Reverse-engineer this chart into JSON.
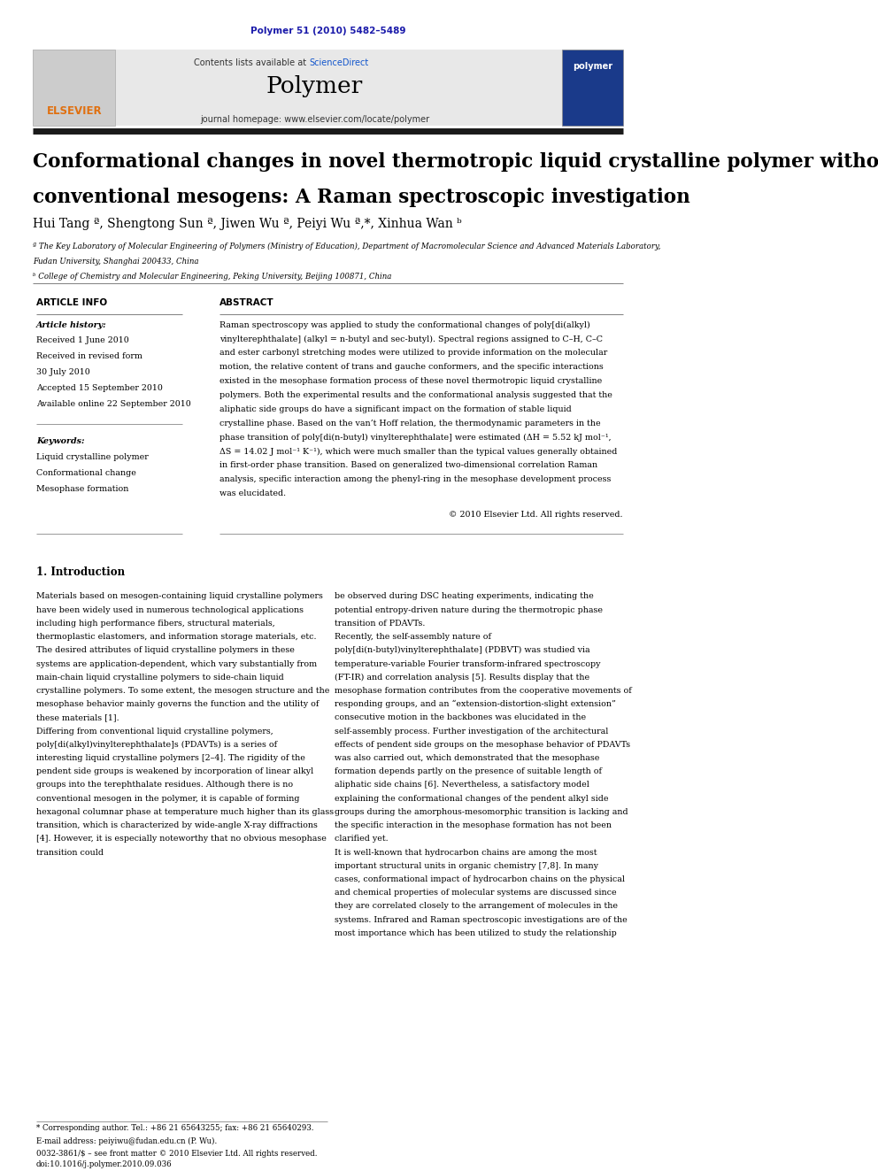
{
  "page_width": 9.92,
  "page_height": 13.23,
  "background_color": "#ffffff",
  "top_doi": "Polymer 51 (2010) 5482–5489",
  "top_doi_color": "#1a1aaa",
  "header_bg": "#e8e8e8",
  "header_text_contents": "Contents lists available at",
  "header_sciencedirect": "ScienceDirect",
  "header_journal": "Polymer",
  "header_homepage": "journal homepage: www.elsevier.com/locate/polymer",
  "thick_bar_color": "#1a1a1a",
  "title_line1": "Conformational changes in novel thermotropic liquid crystalline polymer without",
  "title_line2": "conventional mesogens: A Raman spectroscopic investigation",
  "title_color": "#000000",
  "title_fontsize": 15.5,
  "authors": "Hui Tang ª, Shengtong Sun ª, Jiwen Wu ª, Peiyi Wu ª,*, Xinhua Wan ᵇ",
  "authors_color": "#000000",
  "affil_a": "ª The Key Laboratory of Molecular Engineering of Polymers (Ministry of Education), Department of Macromolecular Science and Advanced Materials Laboratory,",
  "affil_a2": "Fudan University, Shanghai 200433, China",
  "affil_b": "ᵇ College of Chemistry and Molecular Engineering, Peking University, Beijing 100871, China",
  "affil_color": "#000000",
  "section_article_info": "ARTICLE INFO",
  "section_abstract": "ABSTRACT",
  "section_color": "#000000",
  "article_history_header": "Article history:",
  "article_history_lines": [
    "Received 1 June 2010",
    "Received in revised form",
    "30 July 2010",
    "Accepted 15 September 2010",
    "Available online 22 September 2010"
  ],
  "keywords_header": "Keywords:",
  "keywords_lines": [
    "Liquid crystalline polymer",
    "Conformational change",
    "Mesophase formation"
  ],
  "abstract_text": "Raman spectroscopy was applied to study the conformational changes of poly[di(alkyl) vinylterephthalate] (alkyl = n-butyl and sec-butyl). Spectral regions assigned to C–H, C–C and ester carbonyl stretching modes were utilized to provide information on the molecular motion, the relative content of trans and gauche conformers, and the specific interactions existed in the mesophase formation process of these novel thermotropic liquid crystalline polymers. Both the experimental results and the conformational analysis suggested that the aliphatic side groups do have a significant impact on the formation of stable liquid crystalline phase. Based on the van’t Hoff relation, the thermodynamic parameters in the phase transition of poly[di(n-butyl) vinylterephthalate] were estimated (ΔH = 5.52 kJ mol⁻¹, ΔS = 14.02 J mol⁻¹ K⁻¹), which were much smaller than the typical values generally obtained in first-order phase transition. Based on generalized two-dimensional correlation Raman analysis, specific interaction among the phenyl-ring in the mesophase development process was elucidated.",
  "copyright": "© 2010 Elsevier Ltd. All rights reserved.",
  "intro_heading": "1. Introduction",
  "intro_col1": "Materials based on mesogen-containing liquid crystalline polymers have been widely used in numerous technological applications including high performance fibers, structural materials, thermoplastic elastomers, and information storage materials, etc. The desired attributes of liquid crystalline polymers in these systems are application-dependent, which vary substantially from main-chain liquid crystalline polymers to side-chain liquid crystalline polymers. To some extent, the mesogen structure and the mesophase behavior mainly governs the function and the utility of these materials [1].\n    Differing from conventional liquid crystalline polymers, poly[di(alkyl)vinylterephthalate]s (PDAVTs) is a series of interesting liquid crystalline polymers [2–4]. The rigidity of the pendent side groups is weakened by incorporation of linear alkyl groups into the terephthalate residues. Although there is no conventional mesogen in the polymer, it is capable of forming hexagonal columnar phase at temperature much higher than its glass transition, which is characterized by wide-angle X-ray diffractions [4]. However, it is especially noteworthy that no obvious mesophase transition could",
  "intro_col2": "be observed during DSC heating experiments, indicating the potential entropy-driven nature during the thermotropic phase transition of PDAVTs.\n    Recently, the self-assembly nature of poly[di(n-butyl)vinylterephthalate] (PDBVT) was studied via temperature-variable Fourier transform-infrared spectroscopy (FT-IR) and correlation analysis [5]. Results display that the mesophase formation contributes from the cooperative movements of responding groups, and an “extension-distortion-slight extension” consecutive motion in the backbones was elucidated in the self-assembly process. Further investigation of the architectural effects of pendent side groups on the mesophase behavior of PDAVTs was also carried out, which demonstrated that the mesophase formation depends partly on the presence of suitable length of aliphatic side chains [6]. Nevertheless, a satisfactory model explaining the conformational changes of the pendent alkyl side groups during the amorphous-mesomorphic transition is lacking and the specific interaction in the mesophase formation has not been clarified yet.\n    It is well-known that hydrocarbon chains are among the most important structural units in organic chemistry [7,8]. In many cases, conformational impact of hydrocarbon chains on the physical and chemical properties of molecular systems are discussed since they are correlated closely to the arrangement of molecules in the systems. Infrared and Raman spectroscopic investigations are of the most importance which has been utilized to study the relationship",
  "footer_line1": "* Corresponding author. Tel.: +86 21 65643255; fax: +86 21 65640293.",
  "footer_line2": "E-mail address: peiyiwu@fudan.edu.cn (P. Wu).",
  "footer_line3": "0032-3861/$ – see front matter © 2010 Elsevier Ltd. All rights reserved.",
  "footer_line4": "doi:10.1016/j.polymer.2010.09.036"
}
